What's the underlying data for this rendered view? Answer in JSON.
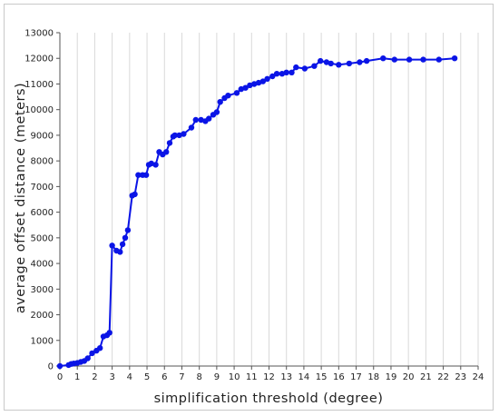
{
  "chart_data": {
    "type": "line",
    "title": "",
    "xlabel": "simplification threshold (degree)",
    "ylabel": "average offset distance (meters)",
    "xlim": [
      0,
      24
    ],
    "ylim": [
      0,
      13000
    ],
    "xticks": [
      "0",
      "1",
      "2",
      "3",
      "4",
      "5",
      "6",
      "7",
      "8",
      "9",
      "10",
      "11",
      "12",
      "13",
      "14",
      "15",
      "16",
      "17",
      "18",
      "19",
      "20",
      "21",
      "22",
      "23",
      "24"
    ],
    "yticks": [
      "0",
      "1000",
      "2000",
      "3000",
      "4000",
      "5000",
      "6000",
      "7000",
      "8000",
      "9000",
      "10000",
      "11000",
      "12000",
      "13000"
    ],
    "grid": "vertical",
    "series_color": "#0a14e6",
    "series": [
      {
        "x": [
          0,
          0.5,
          0.65,
          0.8,
          1.0,
          1.2,
          1.4,
          1.6,
          1.85,
          2.1,
          2.3,
          2.5,
          2.7,
          2.85,
          3.0,
          3.25,
          3.45,
          3.6,
          3.75,
          3.9,
          4.15,
          4.3,
          4.5,
          4.75,
          4.95,
          5.1,
          5.25,
          5.5,
          5.7,
          5.9,
          6.1,
          6.3,
          6.5,
          6.6,
          6.85,
          7.1,
          7.55,
          7.8,
          8.1,
          8.35,
          8.55,
          8.8,
          9.0,
          9.2,
          9.45,
          9.65,
          10.15,
          10.4,
          10.65,
          10.9,
          11.15,
          11.4,
          11.65,
          11.9,
          12.2,
          12.45,
          12.75,
          13.0,
          13.3,
          13.55,
          14.05,
          14.6,
          14.95,
          15.3,
          15.55,
          16.0,
          16.6,
          17.2,
          17.6,
          18.55,
          19.2,
          20.05,
          20.85,
          21.75,
          22.65
        ],
        "y": [
          0,
          40,
          80,
          100,
          120,
          160,
          200,
          300,
          500,
          600,
          700,
          1150,
          1200,
          1300,
          4700,
          4500,
          4450,
          4750,
          5000,
          5300,
          6650,
          6700,
          7450,
          7450,
          7450,
          7850,
          7900,
          7850,
          8350,
          8250,
          8350,
          8700,
          8950,
          9000,
          9000,
          9050,
          9300,
          9600,
          9600,
          9550,
          9650,
          9800,
          9900,
          10300,
          10450,
          10550,
          10650,
          10800,
          10850,
          10950,
          11000,
          11050,
          11100,
          11200,
          11300,
          11400,
          11400,
          11450,
          11450,
          11650,
          11600,
          11700,
          11900,
          11850,
          11800,
          11750,
          11800,
          11850,
          11900,
          12000,
          11950,
          11950,
          11950,
          11950,
          12000
        ]
      }
    ]
  }
}
